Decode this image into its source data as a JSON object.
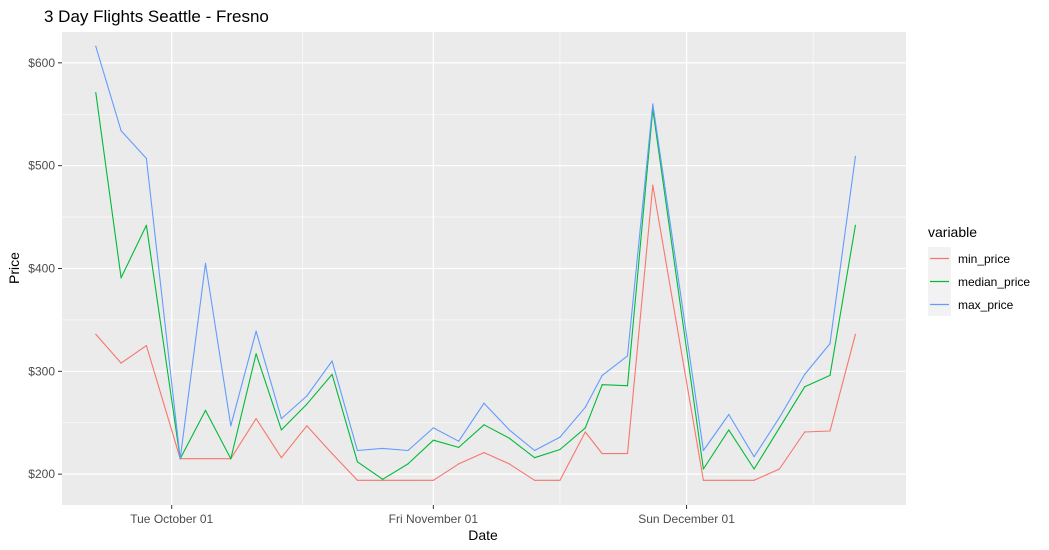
{
  "chart_data": {
    "type": "line",
    "title": "3 Day Flights Seattle - Fresno",
    "xlabel": "Date",
    "ylabel": "Price",
    "x_tick_labels": [
      "Tue October 01",
      "Fri November 01",
      "Sun December 01"
    ],
    "x_tick_dates": [
      "2019-10-01",
      "2019-11-01",
      "2019-12-01"
    ],
    "xlim": [
      "2019-09-18",
      "2019-12-27"
    ],
    "ylim": [
      170,
      630
    ],
    "y_ticks": [
      200,
      300,
      400,
      500,
      600
    ],
    "y_tick_labels": [
      "$200",
      "$300",
      "$400",
      "$500",
      "$600"
    ],
    "grid": true,
    "legend": {
      "title": "variable",
      "position": "right"
    },
    "x": [
      "2019-09-22",
      "2019-09-25",
      "2019-09-28",
      "2019-10-02",
      "2019-10-05",
      "2019-10-08",
      "2019-10-11",
      "2019-10-14",
      "2019-10-17",
      "2019-10-20",
      "2019-10-23",
      "2019-10-26",
      "2019-10-29",
      "2019-11-01",
      "2019-11-04",
      "2019-11-07",
      "2019-11-10",
      "2019-11-13",
      "2019-11-16",
      "2019-11-19",
      "2019-11-21",
      "2019-11-24",
      "2019-11-27",
      "2019-12-03",
      "2019-12-06",
      "2019-12-09",
      "2019-12-12",
      "2019-12-15",
      "2019-12-18",
      "2019-12-21"
    ],
    "series": [
      {
        "name": "min_price",
        "color": "#F8766D",
        "values": [
          336,
          308,
          325,
          215,
          215,
          215,
          254,
          216,
          247,
          220,
          194,
          194,
          194,
          194,
          210,
          221,
          210,
          194,
          194,
          241,
          220,
          220,
          481,
          194,
          194,
          194,
          205,
          241,
          242,
          336
        ]
      },
      {
        "name": "median_price",
        "color": "#00BA38",
        "values": [
          571,
          391,
          442,
          215,
          262,
          215,
          317,
          243,
          268,
          297,
          212,
          195,
          210,
          233,
          226,
          248,
          235,
          216,
          224,
          245,
          287,
          286,
          555,
          205,
          243,
          205,
          245,
          285,
          296,
          442
        ]
      },
      {
        "name": "max_price",
        "color": "#619CFF",
        "values": [
          616,
          534,
          507,
          215,
          405,
          247,
          339,
          254,
          276,
          310,
          223,
          225,
          223,
          245,
          232,
          269,
          243,
          223,
          236,
          265,
          296,
          315,
          560,
          223,
          258,
          217,
          255,
          297,
          327,
          509
        ]
      }
    ]
  }
}
